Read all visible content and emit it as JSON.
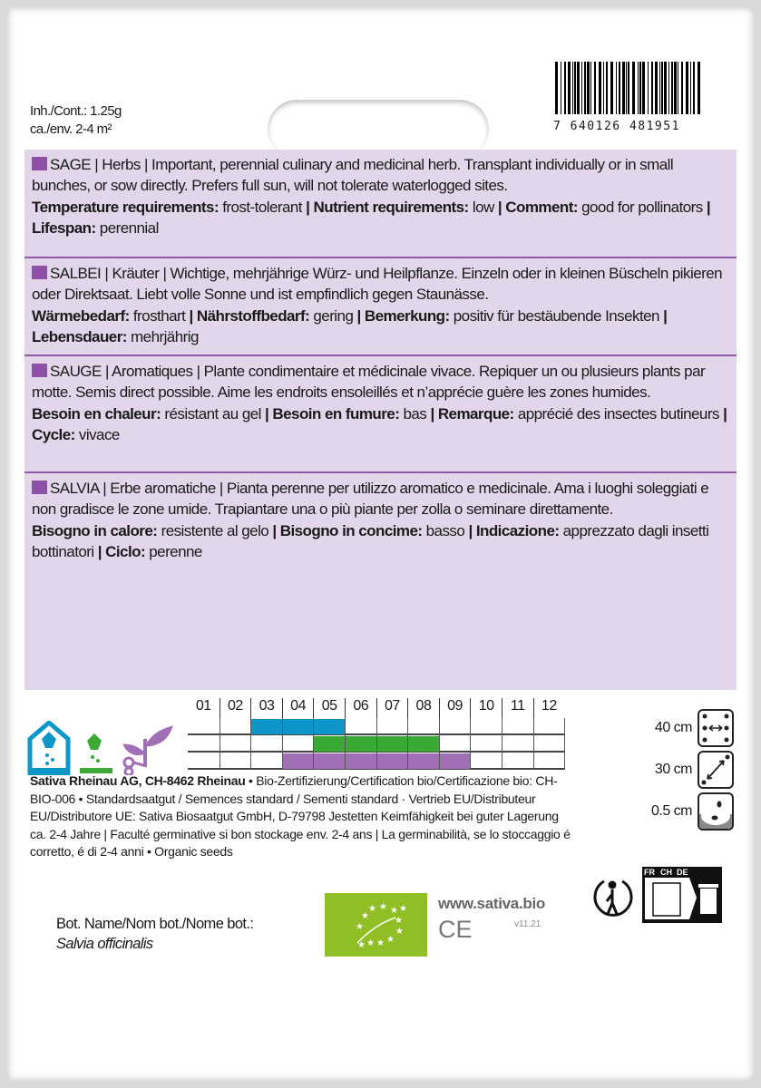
{
  "header": {
    "content": "Inh./Cont.: 1.25g",
    "area": "ca./env. 2-4 m²",
    "barcode_number": "7 640126 481951"
  },
  "colors": {
    "panel": "#e3d6ea",
    "accent": "#8e4fa6",
    "sowing_indoor": "#0d96c8",
    "sowing_direct": "#3aaa35",
    "harvest": "#a06fb5"
  },
  "sections": [
    {
      "intro": "SAGE | Herbs | Important, perennial culinary and medicinal herb. Transplant individually or in small bunches, or sow directly. Prefers full sun, will not tolerate waterlogged sites.",
      "fields": [
        {
          "label": "Temperature requirements:",
          "value": " frost-tolerant "
        },
        {
          "label": "| Nutrient requirements:",
          "value": " low "
        },
        {
          "label": "| Comment:",
          "value": " good for pollinators "
        },
        {
          "label": "| Lifespan:",
          "value": " perennial"
        }
      ]
    },
    {
      "intro": "SALBEI | Kräuter | Wichtige, mehrjährige Würz- und Heilpflanze. Einzeln oder in kleinen Büscheln pikieren oder Direktsaat. Liebt volle Sonne und ist empfindlich gegen Staunässe.",
      "fields": [
        {
          "label": "Wärmebedarf:",
          "value": " frosthart "
        },
        {
          "label": "| Nährstoffbedarf:",
          "value": " gering "
        },
        {
          "label": "| Bemerkung:",
          "value": " positiv für bestäubende Insekten "
        },
        {
          "label": "| Lebensdauer:",
          "value": " mehrjährig"
        }
      ]
    },
    {
      "intro": "SAUGE | Aromatiques | Plante condimentaire et médicinale vivace. Repiquer un ou plusieurs plants par motte. Semis direct possible. Aime les endroits ensoleillés et n’apprécie guère les zones humides.",
      "fields": [
        {
          "label": "Besoin en chaleur:",
          "value": " résistant au gel "
        },
        {
          "label": "| Besoin en fumure:",
          "value": " bas "
        },
        {
          "label": "| Remarque:",
          "value": " apprécié des insectes butineurs "
        },
        {
          "label": "| Cycle:",
          "value": " vivace"
        }
      ]
    },
    {
      "intro": "SALVIA | Erbe aromatiche | Pianta perenne per utilizzo aromatico e medicinale. Ama i luoghi soleggiati e non gradisce le zone umide. Trapiantare una o più piante per zolla o seminare direttamente.",
      "fields": [
        {
          "label": "Bisogno in calore:",
          "value": " resistente al gelo "
        },
        {
          "label": "| Bisogno in concime:",
          "value": " basso "
        },
        {
          "label": "| Indicazione:",
          "value": " apprezzato dagli insetti bottinatori "
        },
        {
          "label": "| Ciclo:",
          "value": " perenne"
        }
      ]
    }
  ],
  "calendar": {
    "months": [
      "01",
      "02",
      "03",
      "04",
      "05",
      "06",
      "07",
      "08",
      "09",
      "10",
      "11",
      "12"
    ],
    "rows": [
      {
        "icon": "indoor-sowing-icon",
        "color": "#0d96c8",
        "from": 3,
        "to": 5
      },
      {
        "icon": "direct-sowing-icon",
        "color": "#3aaa35",
        "from": 5,
        "to": 8
      },
      {
        "icon": "harvest-icon",
        "color": "#a06fb5",
        "from": 4,
        "to": 9
      }
    ]
  },
  "spacing": [
    {
      "value": "40 cm",
      "icon": "row-spacing-icon"
    },
    {
      "value": "30 cm",
      "icon": "plant-spacing-icon"
    },
    {
      "value": "0.5 cm",
      "icon": "sowing-depth-icon"
    }
  ],
  "company": {
    "name": "Sativa Rheinau AG, CH-8462 Rheinau",
    "text": " • Bio-Zertifizierung/Certification bio/Certificazione bio: CH-BIO-006 • Standardsaatgut / Semences standard / Sementi standard · Vertrieb EU/Distributeur EU/Distributore UE: Sativa Biosaatgut GmbH, D-79798 Jestetten Keimfähigkeit bei guter Lagerung ca. 2-4 Jahre | Faculté germinative si bon stockage env. 2-4 ans | La germinabilità, se lo stoccaggio é corretto, é di 2-4 anni • Organic seeds"
  },
  "botanical": {
    "label": "Bot. Name/Nom bot./Nome bot.:",
    "name": "Salvia officinalis"
  },
  "footer": {
    "website": "www.sativa.bio",
    "ce": "CE",
    "version": "v11.21",
    "countries": [
      "FR",
      "CH",
      "DE"
    ]
  }
}
